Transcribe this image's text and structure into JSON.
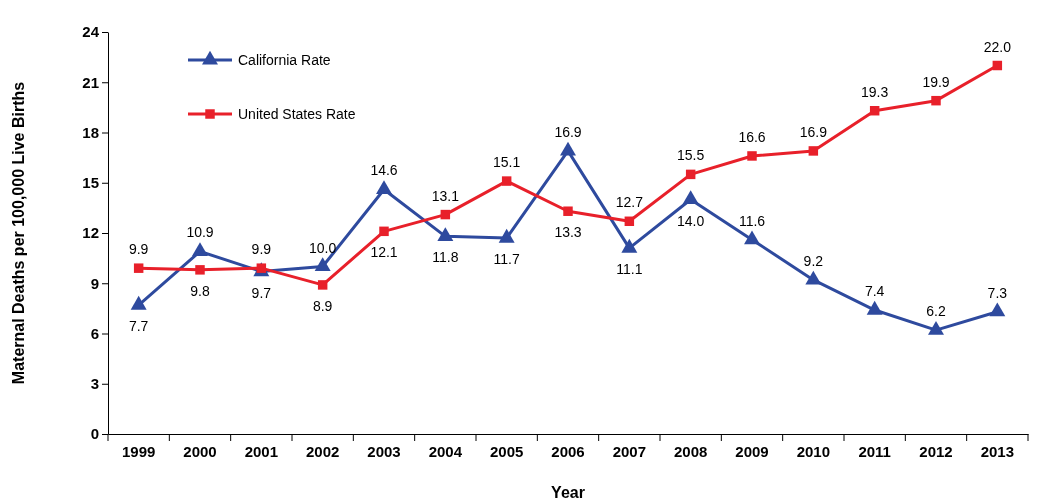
{
  "chart_data": {
    "type": "line",
    "xlabel": "Year",
    "ylabel": "Maternal Deaths per 100,000 Live Births",
    "categories": [
      "1999",
      "2000",
      "2001",
      "2002",
      "2003",
      "2004",
      "2005",
      "2006",
      "2007",
      "2008",
      "2009",
      "2010",
      "2011",
      "2012",
      "2013"
    ],
    "ylim": [
      0,
      24
    ],
    "yticks": [
      0,
      3,
      6,
      9,
      12,
      15,
      18,
      21,
      24
    ],
    "grid": false,
    "legend": "top left",
    "series": [
      {
        "name": "California Rate",
        "color": "#2e4a9e",
        "marker": "triangle",
        "values": [
          7.7,
          10.9,
          9.7,
          10.0,
          14.6,
          11.8,
          11.7,
          16.9,
          11.1,
          14.0,
          11.6,
          9.2,
          7.4,
          6.2,
          7.3
        ],
        "value_labels": [
          "7.7",
          "10.9",
          "9.7",
          "10.0",
          "14.6",
          "11.8",
          "11.7",
          "16.9",
          "11.1",
          "14.0",
          "11.6",
          "9.2",
          "7.4",
          "6.2",
          "7.3"
        ]
      },
      {
        "name": "United States Rate",
        "color": "#e8202a",
        "marker": "square",
        "values": [
          9.9,
          9.8,
          9.9,
          8.9,
          12.1,
          13.1,
          15.1,
          13.3,
          12.7,
          15.5,
          16.6,
          16.9,
          19.3,
          19.9,
          22.0
        ],
        "value_labels": [
          "9.9",
          "9.8",
          "9.9",
          "8.9",
          "12.1",
          "13.1",
          "15.1",
          "13.3",
          "12.7",
          "15.5",
          "16.6",
          "16.9",
          "19.3",
          "19.9",
          "22.0"
        ]
      }
    ]
  }
}
